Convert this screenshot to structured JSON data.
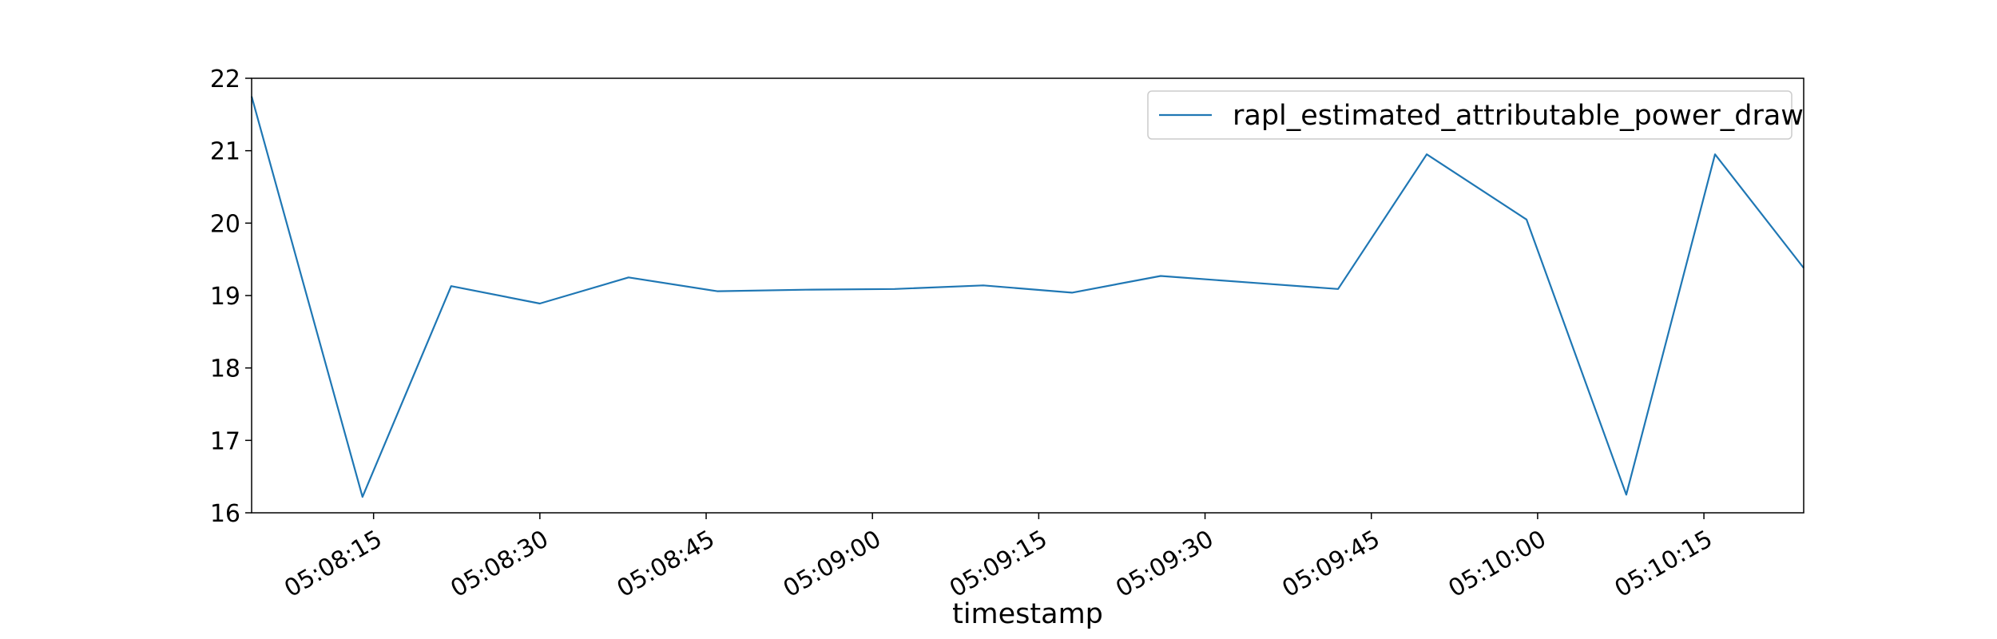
{
  "chart_data": {
    "type": "line",
    "title": "",
    "xlabel": "timestamp",
    "ylabel": "",
    "x_axis_type": "time",
    "xlim": [
      "05:08:04",
      "05:10:24"
    ],
    "ylim": [
      16,
      22
    ],
    "x_ticks": [
      "05:08:15",
      "05:08:30",
      "05:08:45",
      "05:09:00",
      "05:09:15",
      "05:09:30",
      "05:09:45",
      "05:10:00",
      "05:10:15"
    ],
    "y_ticks": [
      16,
      17,
      18,
      19,
      20,
      21,
      22
    ],
    "x_tick_rotation_deg": 30,
    "grid": false,
    "legend": {
      "placement": "top-right",
      "entries": [
        "rapl_estimated_attributable_power_draw"
      ]
    },
    "series": [
      {
        "name": "rapl_estimated_attributable_power_draw",
        "color": "#1f77b4",
        "x": [
          "05:08:04",
          "05:08:14",
          "05:08:22",
          "05:08:30",
          "05:08:38",
          "05:08:46",
          "05:08:54",
          "05:09:02",
          "05:09:10",
          "05:09:18",
          "05:09:26",
          "05:09:34",
          "05:09:42",
          "05:09:50",
          "05:09:59",
          "05:10:08",
          "05:10:16",
          "05:10:24"
        ],
        "y": [
          21.75,
          16.22,
          19.13,
          18.89,
          19.25,
          19.06,
          19.08,
          19.09,
          19.14,
          19.04,
          19.27,
          19.18,
          19.09,
          20.95,
          20.05,
          16.25,
          20.95,
          19.38
        ]
      }
    ]
  }
}
